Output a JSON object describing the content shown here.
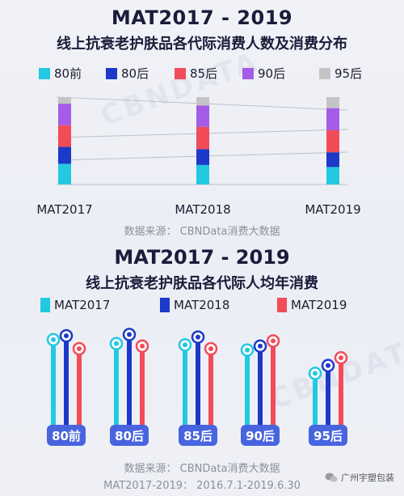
{
  "section1": {
    "title": "MAT2017 - 2019",
    "subtitle": "线上抗衰老护肤品各代际消费人数及消费分布",
    "legend": [
      "80前",
      "80后",
      "85后",
      "90后",
      "95后"
    ],
    "source": "数据来源： CBNData消费大数据"
  },
  "section2": {
    "title": "MAT2017 - 2019",
    "subtitle": "线上抗衰老护肤品各代际人均年消费",
    "legend": [
      "MAT2017",
      "MAT2018",
      "MAT2019"
    ],
    "source": "数据来源： CBNData消费大数据",
    "period": "MAT2017-2019： 2016.7.1-2019.6.30"
  },
  "brand": {
    "text": "广州宇塑包装"
  },
  "colors": {
    "80前": "#22c9e0",
    "80后": "#1c39c9",
    "85后": "#f14c58",
    "90后": "#a45ce8",
    "95后": "#c4c4c4",
    "MAT2017": "#22c9e0",
    "MAT2018": "#1c39c9",
    "MAT2019": "#f14c58"
  },
  "chart_data": [
    {
      "type": "bar",
      "stacked": true,
      "normalized": true,
      "categories": [
        "MAT2017",
        "MAT2018",
        "MAT2019"
      ],
      "series": [
        {
          "name": "80前",
          "values": [
            0.22,
            0.21,
            0.19
          ]
        },
        {
          "name": "80后",
          "values": [
            0.18,
            0.17,
            0.16
          ]
        },
        {
          "name": "85后",
          "values": [
            0.23,
            0.24,
            0.24
          ]
        },
        {
          "name": "90后",
          "values": [
            0.23,
            0.23,
            0.24
          ]
        },
        {
          "name": "95后",
          "values": [
            0.07,
            0.09,
            0.12
          ]
        }
      ],
      "ylim": [
        0,
        1
      ],
      "grid": true,
      "legend": "top"
    },
    {
      "type": "bar",
      "style": "lollipop",
      "categories": [
        "80前",
        "80后",
        "85后",
        "90后",
        "95后"
      ],
      "series": [
        {
          "name": "MAT2017",
          "values": [
            92,
            89,
            88,
            84,
            66
          ]
        },
        {
          "name": "MAT2018",
          "values": [
            95,
            96,
            94,
            87,
            72
          ]
        },
        {
          "name": "MAT2019",
          "values": [
            85,
            87,
            85,
            91,
            78
          ]
        }
      ],
      "legend": "top"
    }
  ]
}
